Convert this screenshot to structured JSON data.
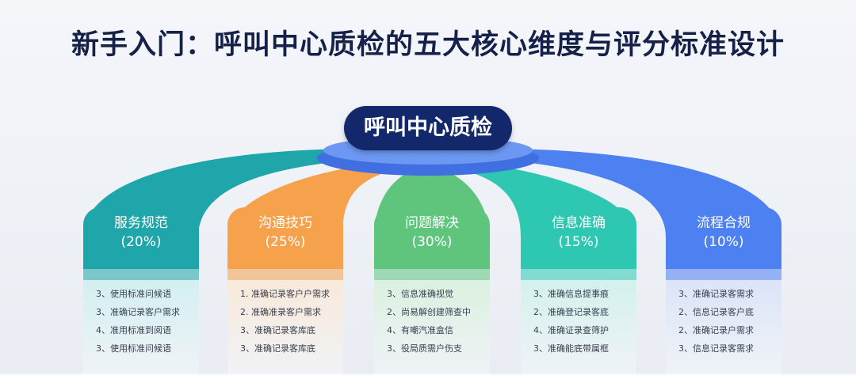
{
  "title": "新手入门：呼叫中心质检的五大核心维度与评分标准设计",
  "hub": "呼叫中心质检",
  "columns": [
    {
      "name": "服务规范",
      "weight": "(20%)",
      "color": "#1fa6aa",
      "bg": "#d3eff0",
      "items": [
        "3、使用标准问候语",
        "3、准确记录客户需求",
        "4、准用标准到阅语",
        "3、使用标准问候语"
      ]
    },
    {
      "name": "沟通技巧",
      "weight": "(25%)",
      "color": "#f6a24c",
      "bg": "#f8e9d9",
      "items": [
        "1. 准确记录客户户需求",
        "2. 准确准录客户需求",
        "3、准确记录客库底",
        "3、准确记录客库底"
      ]
    },
    {
      "name": "问题解决",
      "weight": "(30%)",
      "color": "#5fc57d",
      "bg": "#daf1e0",
      "items": [
        "3、信息准确视觉",
        "2、尚易解创建筛查中",
        "4、有嘲汽准盒信",
        "3、役局质需户伤支"
      ]
    },
    {
      "name": "信息准确",
      "weight": "(15%)",
      "color": "#2ec8b2",
      "bg": "#d3f1ec",
      "items": [
        "3、准确信息提事痕",
        "2、准确登记录客底",
        "4、准确证录查筛护",
        "3、准确能底带属框"
      ]
    },
    {
      "name": "流程合规",
      "weight": "(10%)",
      "color": "#4d80f0",
      "bg": "#dbe5f8",
      "items": [
        "3、准确记录客需求",
        "2、信息记录客户底",
        "2、准确记录户需求",
        "3、信息记录客需求"
      ]
    }
  ]
}
